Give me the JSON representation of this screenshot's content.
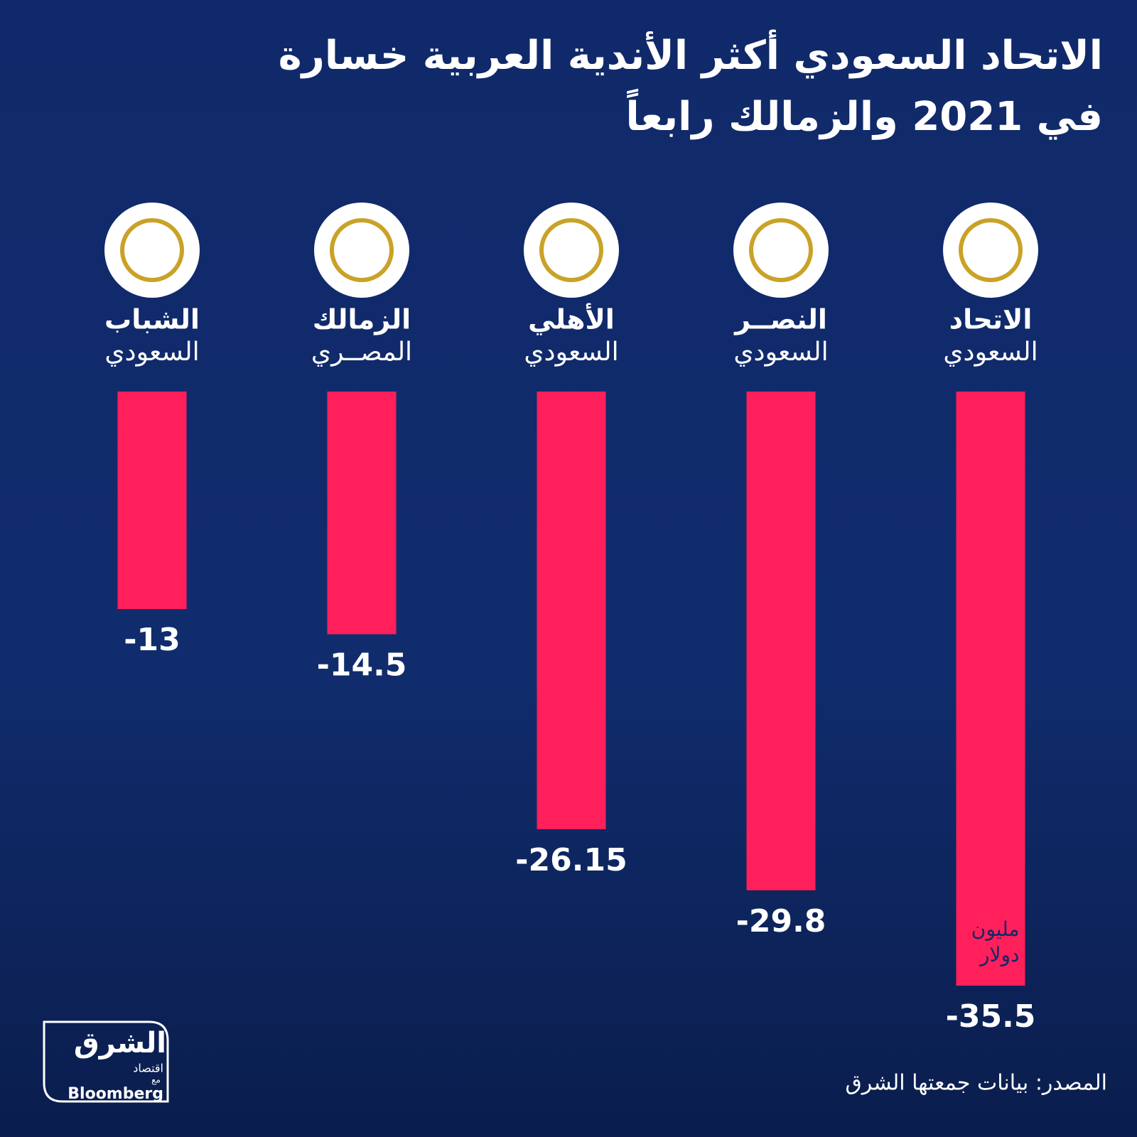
{
  "chart_data": {
    "type": "bar",
    "title_lines": [
      "الاتحاد السعودي أكثر الأندية العربية  خسارة",
      "في 2021 والزمالك رابعاً"
    ],
    "categories": [
      "الاتحاد",
      "النصــر",
      "الأهلي",
      "الزمالك",
      "الشباب"
    ],
    "category_sublabels": [
      "السعودي",
      "السعودي",
      "السعودي",
      "المصــري",
      "السعودي"
    ],
    "values": [
      -35.5,
      -29.8,
      -26.15,
      -14.5,
      -13
    ],
    "color": "#ff1f5a",
    "unit_lines": [
      "مليون",
      "دولار"
    ],
    "source": "المصدر: بيانات جمعتها الشرق"
  },
  "brand": {
    "name": "الشرق",
    "tagline": "اقتصاد",
    "with": "مع",
    "partner": "Bloomberg"
  }
}
